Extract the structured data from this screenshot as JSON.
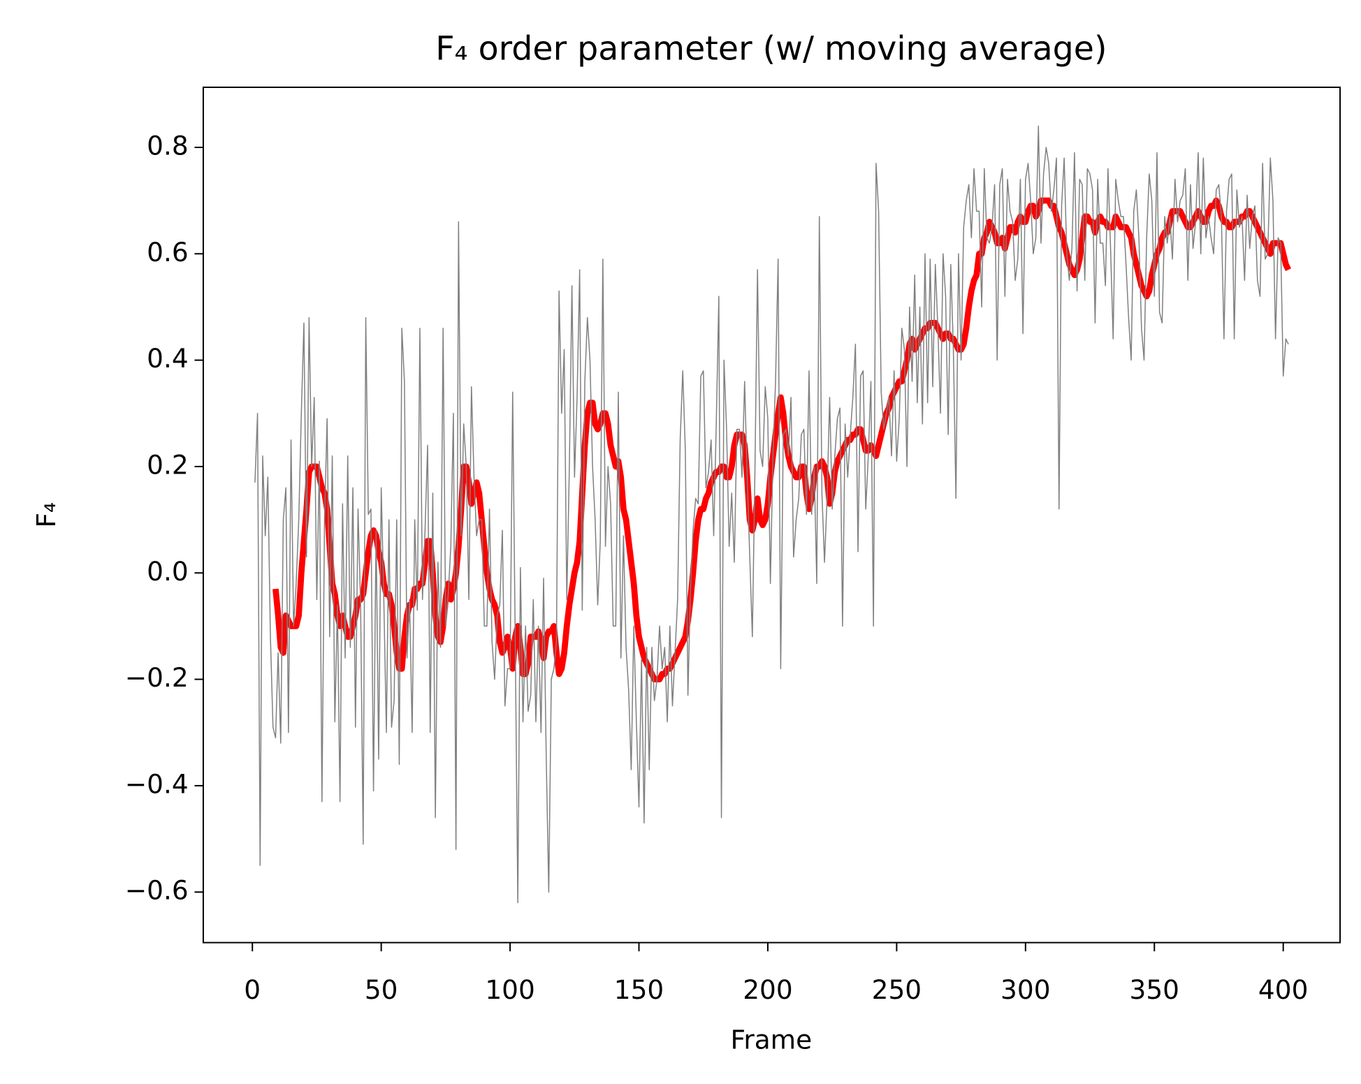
{
  "chart_data": {
    "type": "line",
    "title": "F₄ order parameter (w/ moving average)",
    "x_label": "Frame",
    "y_label": "F₄",
    "xlim": [
      -19.05,
      422.05
    ],
    "ylim": [
      -0.695,
      0.913
    ],
    "xticks": [
      0,
      50,
      100,
      150,
      200,
      250,
      300,
      350,
      400
    ],
    "yticks": [
      {
        "value": -0.6,
        "label": "−0.6"
      },
      {
        "value": -0.4,
        "label": "−0.4"
      },
      {
        "value": -0.2,
        "label": "−0.2"
      },
      {
        "value": 0,
        "label": "0.0"
      },
      0.2,
      0.4,
      0.6,
      0.8
    ],
    "grid": false,
    "x": [
      1,
      2,
      3,
      4,
      5,
      6,
      7,
      8,
      9,
      10,
      11,
      12,
      13,
      14,
      15,
      16,
      17,
      18,
      19,
      20,
      21,
      22,
      23,
      24,
      25,
      26,
      27,
      28,
      29,
      30,
      31,
      32,
      33,
      34,
      35,
      36,
      37,
      38,
      39,
      40,
      41,
      42,
      43,
      44,
      45,
      46,
      47,
      48,
      49,
      50,
      51,
      52,
      53,
      54,
      55,
      56,
      57,
      58,
      59,
      60,
      61,
      62,
      63,
      64,
      65,
      66,
      67,
      68,
      69,
      70,
      71,
      72,
      73,
      74,
      75,
      76,
      77,
      78,
      79,
      80,
      81,
      82,
      83,
      84,
      85,
      86,
      87,
      88,
      89,
      90,
      91,
      92,
      93,
      94,
      95,
      96,
      97,
      98,
      99,
      100,
      101,
      102,
      103,
      104,
      105,
      106,
      107,
      108,
      109,
      110,
      111,
      112,
      113,
      114,
      115,
      116,
      117,
      118,
      119,
      120,
      121,
      122,
      123,
      124,
      125,
      126,
      127,
      128,
      129,
      130,
      131,
      132,
      133,
      134,
      135,
      136,
      137,
      138,
      139,
      140,
      141,
      142,
      143,
      144,
      145,
      146,
      147,
      148,
      149,
      150,
      151,
      152,
      153,
      154,
      155,
      156,
      157,
      158,
      159,
      160,
      161,
      162,
      163,
      164,
      165,
      166,
      167,
      168,
      169,
      170,
      171,
      172,
      173,
      174,
      175,
      176,
      177,
      178,
      179,
      180,
      181,
      182,
      183,
      184,
      185,
      186,
      187,
      188,
      189,
      190,
      191,
      192,
      193,
      194,
      195,
      196,
      197,
      198,
      199,
      200,
      201,
      202,
      203,
      204,
      205,
      206,
      207,
      208,
      209,
      210,
      211,
      212,
      213,
      214,
      215,
      216,
      217,
      218,
      219,
      220,
      221,
      222,
      223,
      224,
      225,
      226,
      227,
      228,
      229,
      230,
      231,
      232,
      233,
      234,
      235,
      236,
      237,
      238,
      239,
      240,
      241,
      242,
      243,
      244,
      245,
      246,
      247,
      248,
      249,
      250,
      251,
      252,
      253,
      254,
      255,
      256,
      257,
      258,
      259,
      260,
      261,
      262,
      263,
      264,
      265,
      266,
      267,
      268,
      269,
      270,
      271,
      272,
      273,
      274,
      275,
      276,
      277,
      278,
      279,
      280,
      281,
      282,
      283,
      284,
      285,
      286,
      287,
      288,
      289,
      290,
      291,
      292,
      293,
      294,
      295,
      296,
      297,
      298,
      299,
      300,
      301,
      302,
      303,
      304,
      305,
      306,
      307,
      308,
      309,
      310,
      311,
      312,
      313,
      314,
      315,
      316,
      317,
      318,
      319,
      320,
      321,
      322,
      323,
      324,
      325,
      326,
      327,
      328,
      329,
      330,
      331,
      332,
      333,
      334,
      335,
      336,
      337,
      338,
      339,
      340,
      341,
      342,
      343,
      344,
      345,
      346,
      347,
      348,
      349,
      350,
      351,
      352,
      353,
      354,
      355,
      356,
      357,
      358,
      359,
      360,
      361,
      362,
      363,
      364,
      365,
      366,
      367,
      368,
      369,
      370,
      371,
      372,
      373,
      374,
      375,
      376,
      377,
      378,
      379,
      380,
      381,
      382,
      383,
      384,
      385,
      386,
      387,
      388,
      389,
      390,
      391,
      392,
      393,
      394,
      395,
      396,
      397,
      398,
      399,
      400,
      401,
      402
    ],
    "series": [
      {
        "color": "#ff0000",
        "width": 7,
        "values": [
          null,
          null,
          null,
          null,
          null,
          null,
          null,
          null,
          -0.03,
          -0.08,
          -0.14,
          -0.15,
          -0.08,
          -0.09,
          -0.1,
          -0.1,
          -0.1,
          -0.08,
          0.0,
          0.06,
          0.12,
          0.19,
          0.2,
          0.2,
          0.2,
          0.18,
          0.16,
          0.15,
          0.12,
          0.05,
          -0.02,
          -0.04,
          -0.08,
          -0.1,
          -0.08,
          -0.1,
          -0.12,
          -0.12,
          -0.1,
          -0.08,
          -0.05,
          -0.05,
          -0.04,
          0.0,
          0.04,
          0.07,
          0.08,
          0.07,
          0.04,
          0.02,
          -0.02,
          -0.04,
          -0.04,
          -0.06,
          -0.1,
          -0.15,
          -0.18,
          -0.18,
          -0.12,
          -0.08,
          -0.06,
          -0.06,
          -0.03,
          -0.03,
          -0.02,
          -0.02,
          0.02,
          0.06,
          0.06,
          0.0,
          -0.08,
          -0.12,
          -0.13,
          -0.1,
          -0.05,
          -0.02,
          -0.05,
          -0.03,
          0.0,
          0.05,
          0.12,
          0.2,
          0.2,
          0.17,
          0.13,
          0.15,
          0.17,
          0.15,
          0.1,
          0.05,
          0.0,
          -0.03,
          -0.05,
          -0.06,
          -0.08,
          -0.13,
          -0.15,
          -0.14,
          -0.12,
          -0.14,
          -0.18,
          -0.12,
          -0.1,
          -0.14,
          -0.19,
          -0.19,
          -0.17,
          -0.12,
          -0.12,
          -0.12,
          -0.11,
          -0.13,
          -0.16,
          -0.12,
          -0.11,
          -0.11,
          -0.1,
          -0.15,
          -0.19,
          -0.18,
          -0.15,
          -0.1,
          -0.06,
          -0.03,
          0.0,
          0.02,
          0.06,
          0.15,
          0.24,
          0.3,
          0.32,
          0.32,
          0.28,
          0.27,
          0.28,
          0.3,
          0.3,
          0.28,
          0.24,
          0.22,
          0.2,
          0.21,
          0.18,
          0.12,
          0.1,
          0.06,
          0.02,
          -0.02,
          -0.08,
          -0.12,
          -0.14,
          -0.16,
          -0.17,
          -0.18,
          -0.19,
          -0.2,
          -0.2,
          -0.2,
          -0.19,
          -0.19,
          -0.18,
          -0.18,
          -0.17,
          -0.16,
          -0.15,
          -0.14,
          -0.13,
          -0.12,
          -0.09,
          -0.05,
          0.0,
          0.06,
          0.1,
          0.12,
          0.12,
          0.14,
          0.15,
          0.17,
          0.18,
          0.19,
          0.19,
          0.2,
          0.2,
          0.18,
          0.18,
          0.2,
          0.24,
          0.26,
          0.26,
          0.26,
          0.24,
          0.18,
          0.1,
          0.08,
          0.1,
          0.14,
          0.1,
          0.09,
          0.1,
          0.13,
          0.18,
          0.22,
          0.26,
          0.3,
          0.33,
          0.3,
          0.25,
          0.22,
          0.2,
          0.19,
          0.18,
          0.18,
          0.2,
          0.2,
          0.15,
          0.12,
          0.14,
          0.18,
          0.2,
          0.2,
          0.21,
          0.2,
          0.18,
          0.13,
          0.15,
          0.19,
          0.21,
          0.22,
          0.23,
          0.24,
          0.25,
          0.25,
          0.26,
          0.26,
          0.27,
          0.27,
          0.25,
          0.23,
          0.23,
          0.24,
          0.23,
          0.22,
          0.24,
          0.26,
          0.28,
          0.3,
          0.31,
          0.33,
          0.34,
          0.35,
          0.36,
          0.36,
          0.38,
          0.4,
          0.43,
          0.44,
          0.42,
          0.43,
          0.44,
          0.45,
          0.46,
          0.46,
          0.47,
          0.47,
          0.47,
          0.46,
          0.45,
          0.44,
          0.45,
          0.45,
          0.44,
          0.44,
          0.43,
          0.42,
          0.42,
          0.43,
          0.46,
          0.5,
          0.53,
          0.55,
          0.56,
          0.6,
          0.6,
          0.63,
          0.64,
          0.66,
          0.65,
          0.64,
          0.62,
          0.62,
          0.63,
          0.61,
          0.63,
          0.65,
          0.65,
          0.64,
          0.66,
          0.67,
          0.66,
          0.66,
          0.68,
          0.69,
          0.69,
          0.67,
          0.68,
          0.7,
          0.7,
          0.7,
          0.7,
          0.69,
          0.69,
          0.67,
          0.65,
          0.64,
          0.62,
          0.6,
          0.58,
          0.57,
          0.56,
          0.57,
          0.59,
          0.63,
          0.67,
          0.67,
          0.66,
          0.66,
          0.64,
          0.66,
          0.67,
          0.66,
          0.66,
          0.65,
          0.65,
          0.65,
          0.67,
          0.66,
          0.65,
          0.65,
          0.65,
          0.64,
          0.63,
          0.6,
          0.58,
          0.56,
          0.54,
          0.53,
          0.52,
          0.53,
          0.56,
          0.58,
          0.6,
          0.61,
          0.63,
          0.64,
          0.64,
          0.66,
          0.68,
          0.68,
          0.68,
          0.68,
          0.67,
          0.66,
          0.65,
          0.65,
          0.66,
          0.67,
          0.68,
          0.67,
          0.66,
          0.66,
          0.68,
          0.69,
          0.69,
          0.7,
          0.69,
          0.67,
          0.66,
          0.66,
          0.65,
          0.65,
          0.66,
          0.66,
          0.66,
          0.67,
          0.67,
          0.68,
          0.68,
          0.67,
          0.66,
          0.65,
          0.64,
          0.63,
          0.62,
          0.61,
          0.6,
          0.62,
          0.62,
          0.62,
          0.62,
          0.6,
          0.58,
          0.57
        ]
      },
      {
        "color": "#808080",
        "width": 1.2,
        "values": [
          0.17,
          0.3,
          -0.55,
          0.22,
          0.07,
          0.18,
          -0.12,
          -0.29,
          -0.31,
          -0.15,
          -0.32,
          0.1,
          0.16,
          -0.3,
          0.25,
          -0.1,
          -0.02,
          0.1,
          0.3,
          0.47,
          0.03,
          0.48,
          0.2,
          0.33,
          -0.05,
          0.21,
          -0.43,
          0.1,
          0.29,
          -0.12,
          0.22,
          -0.28,
          -0.06,
          -0.43,
          0.13,
          -0.16,
          0.22,
          -0.14,
          0.16,
          -0.29,
          0.12,
          -0.06,
          -0.51,
          0.48,
          0.11,
          0.12,
          -0.41,
          0.08,
          -0.35,
          0.16,
          -0.05,
          -0.3,
          0.1,
          -0.29,
          -0.24,
          0.1,
          -0.36,
          0.46,
          0.36,
          -0.16,
          -0.05,
          -0.3,
          0.1,
          -0.07,
          0.46,
          -0.05,
          0.08,
          0.24,
          -0.3,
          0.15,
          -0.46,
          0.02,
          -0.14,
          0.46,
          -0.1,
          -0.04,
          0.05,
          0.3,
          -0.52,
          0.66,
          0.07,
          0.28,
          0.2,
          -0.05,
          0.35,
          0.18,
          0.07,
          0.1,
          0.1,
          -0.1,
          -0.1,
          0.12,
          -0.13,
          -0.2,
          -0.08,
          -0.06,
          0.08,
          -0.25,
          -0.18,
          -0.18,
          0.34,
          -0.13,
          -0.62,
          0.01,
          -0.28,
          -0.1,
          -0.26,
          -0.23,
          -0.05,
          -0.28,
          -0.1,
          -0.3,
          -0.01,
          -0.34,
          -0.6,
          -0.2,
          -0.18,
          -0.13,
          0.53,
          0.3,
          0.42,
          -0.05,
          0.2,
          0.54,
          0.18,
          0.33,
          0.57,
          -0.07,
          0.36,
          0.48,
          0.4,
          0.2,
          0.1,
          -0.06,
          0.06,
          0.59,
          0.05,
          0.2,
          0.13,
          -0.1,
          -0.1,
          0.34,
          -0.16,
          0.07,
          -0.14,
          -0.22,
          -0.37,
          -0.1,
          -0.28,
          -0.44,
          -0.16,
          -0.47,
          -0.14,
          -0.37,
          -0.14,
          -0.24,
          -0.2,
          -0.1,
          -0.18,
          -0.14,
          -0.28,
          -0.1,
          -0.25,
          -0.15,
          -0.05,
          0.25,
          0.38,
          0.23,
          -0.23,
          -0.03,
          0.08,
          0.14,
          0.13,
          0.37,
          0.38,
          0.16,
          0.19,
          0.25,
          0.07,
          0.28,
          0.52,
          -0.46,
          0.4,
          0.27,
          0.05,
          0.15,
          0.02,
          0.27,
          0.27,
          0.18,
          0.36,
          0.18,
          0.03,
          -0.12,
          0.19,
          0.57,
          0.23,
          0.2,
          0.35,
          0.29,
          -0.02,
          0.22,
          0.36,
          0.59,
          -0.18,
          0.26,
          0.27,
          0.22,
          0.33,
          0.03,
          0.1,
          0.14,
          0.26,
          0.27,
          0.11,
          0.38,
          0.11,
          0.2,
          -0.02,
          0.67,
          0.15,
          0.02,
          0.14,
          0.33,
          0.12,
          0.22,
          0.29,
          0.31,
          -0.1,
          0.28,
          0.18,
          0.26,
          0.33,
          0.43,
          0.04,
          0.37,
          0.38,
          0.12,
          0.22,
          0.36,
          -0.1,
          0.77,
          0.68,
          0.34,
          0.27,
          0.3,
          0.33,
          0.22,
          0.38,
          0.21,
          0.29,
          0.46,
          0.42,
          0.2,
          0.5,
          0.36,
          0.56,
          0.32,
          0.5,
          0.28,
          0.6,
          0.32,
          0.59,
          0.35,
          0.58,
          0.46,
          0.3,
          0.6,
          0.52,
          0.26,
          0.58,
          0.42,
          0.14,
          0.6,
          0.4,
          0.65,
          0.7,
          0.73,
          0.63,
          0.76,
          0.68,
          0.68,
          0.5,
          0.76,
          0.63,
          0.62,
          0.65,
          0.73,
          0.4,
          0.73,
          0.76,
          0.52,
          0.74,
          0.68,
          0.66,
          0.55,
          0.59,
          0.74,
          0.45,
          0.74,
          0.77,
          0.7,
          0.6,
          0.63,
          0.84,
          0.62,
          0.75,
          0.8,
          0.77,
          0.68,
          0.72,
          0.78,
          0.12,
          0.69,
          0.78,
          0.6,
          0.55,
          0.61,
          0.79,
          0.53,
          0.74,
          0.73,
          0.55,
          0.76,
          0.75,
          0.72,
          0.47,
          0.74,
          0.62,
          0.62,
          0.54,
          0.76,
          0.61,
          0.44,
          0.74,
          0.7,
          0.67,
          0.67,
          0.58,
          0.48,
          0.4,
          0.68,
          0.72,
          0.63,
          0.46,
          0.4,
          0.63,
          0.75,
          0.7,
          0.52,
          0.79,
          0.49,
          0.47,
          0.67,
          0.62,
          0.67,
          0.59,
          0.74,
          0.66,
          0.7,
          0.71,
          0.76,
          0.55,
          0.73,
          0.61,
          0.66,
          0.79,
          0.6,
          0.78,
          0.63,
          0.67,
          0.63,
          0.6,
          0.72,
          0.73,
          0.67,
          0.44,
          0.68,
          0.74,
          0.75,
          0.44,
          0.72,
          0.65,
          0.67,
          0.55,
          0.71,
          0.61,
          0.67,
          0.69,
          0.55,
          0.52,
          0.77,
          0.59,
          0.6,
          0.78,
          0.7,
          0.44,
          0.63,
          0.62,
          0.37,
          0.44,
          0.43
        ]
      }
    ]
  }
}
